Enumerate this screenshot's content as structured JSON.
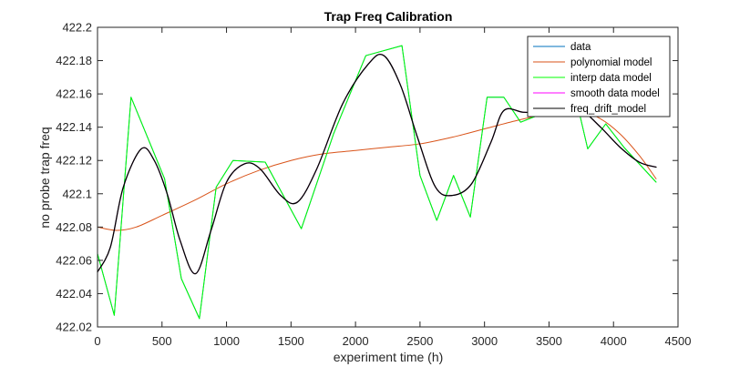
{
  "chart_data": {
    "type": "line",
    "title": "Trap Freq Calibration",
    "xlabel": "experiment time (h)",
    "ylabel": "no probe trap freq",
    "xlim": [
      0,
      4500
    ],
    "ylim": [
      422.02,
      422.2
    ],
    "x_ticks": [
      0,
      500,
      1000,
      1500,
      2000,
      2500,
      3000,
      3500,
      4000,
      4500
    ],
    "y_ticks": [
      422.02,
      422.04,
      422.06,
      422.08,
      422.1,
      422.12,
      422.14,
      422.16,
      422.18,
      422.2
    ],
    "x_tick_labels": [
      "0",
      "500",
      "1000",
      "1500",
      "2000",
      "2500",
      "3000",
      "3500",
      "4000",
      "4500"
    ],
    "y_tick_labels": [
      "422.02",
      "422.04",
      "422.06",
      "422.08",
      "422.1",
      "422.12",
      "422.14",
      "422.16",
      "422.18",
      "422.2"
    ],
    "grid": false,
    "legend_position": "top-right",
    "series": [
      {
        "name": "data",
        "color": "#0072BD",
        "x": [
          0,
          130,
          260,
          520,
          650,
          790,
          920,
          1050,
          1300,
          1580,
          1830,
          2080,
          2360,
          2500,
          2630,
          2760,
          2890,
          3020,
          3150,
          3280,
          3410,
          3540,
          3680,
          3800,
          3940,
          4080,
          4330
        ],
        "y": [
          422.064,
          422.027,
          422.158,
          422.109,
          422.049,
          422.025,
          422.104,
          422.12,
          422.119,
          422.079,
          422.136,
          422.183,
          422.189,
          422.111,
          422.084,
          422.111,
          422.086,
          422.158,
          422.158,
          422.143,
          422.147,
          422.147,
          422.167,
          422.127,
          422.142,
          422.128,
          422.107
        ]
      },
      {
        "name": "polynomial model",
        "color": "#D95319",
        "x": [
          0,
          150,
          300,
          500,
          750,
          1000,
          1250,
          1500,
          1750,
          2000,
          2250,
          2500,
          2750,
          3000,
          3250,
          3500,
          3750,
          3900,
          4050,
          4200,
          4330
        ],
        "y": [
          422.08,
          422.078,
          422.08,
          422.087,
          422.096,
          422.106,
          422.114,
          422.12,
          422.124,
          422.126,
          422.128,
          422.13,
          422.134,
          422.139,
          422.144,
          422.148,
          422.149,
          422.145,
          422.136,
          422.123,
          422.109
        ]
      },
      {
        "name": "interp data model",
        "color": "#00FF00",
        "x": [
          0,
          130,
          260,
          520,
          650,
          790,
          920,
          1050,
          1300,
          1580,
          1830,
          2080,
          2360,
          2500,
          2630,
          2760,
          2890,
          3020,
          3150,
          3280,
          3410,
          3540,
          3680,
          3800,
          3940,
          4080,
          4330
        ],
        "y": [
          422.064,
          422.027,
          422.158,
          422.109,
          422.049,
          422.025,
          422.104,
          422.12,
          422.119,
          422.079,
          422.136,
          422.183,
          422.189,
          422.111,
          422.084,
          422.111,
          422.086,
          422.158,
          422.158,
          422.143,
          422.147,
          422.147,
          422.167,
          422.127,
          422.142,
          422.128,
          422.107
        ]
      },
      {
        "name": "smooth data model",
        "color": "#FF00FF",
        "x": [
          0,
          100,
          200,
          340,
          440,
          540,
          640,
          760,
          880,
          1000,
          1140,
          1260,
          1420,
          1550,
          1700,
          1900,
          2100,
          2220,
          2350,
          2480,
          2620,
          2750,
          2900,
          3050,
          3150,
          3300,
          3450,
          3600,
          3750,
          3900,
          4050,
          4200,
          4330
        ],
        "y": [
          422.053,
          422.068,
          422.104,
          422.127,
          422.12,
          422.1,
          422.072,
          422.052,
          422.078,
          422.107,
          422.118,
          422.115,
          422.099,
          422.095,
          422.115,
          422.154,
          422.178,
          422.183,
          422.165,
          422.134,
          422.104,
          422.099,
          422.106,
          422.131,
          422.15,
          422.149,
          422.149,
          422.151,
          422.15,
          422.14,
          422.128,
          422.119,
          422.116
        ]
      },
      {
        "name": "freq_drift_model",
        "color": "#000000",
        "x": [
          0,
          100,
          200,
          340,
          440,
          540,
          640,
          760,
          880,
          1000,
          1140,
          1260,
          1420,
          1550,
          1700,
          1900,
          2100,
          2220,
          2350,
          2480,
          2620,
          2750,
          2900,
          3050,
          3150,
          3300,
          3450,
          3600,
          3750,
          3900,
          4050,
          4200,
          4330
        ],
        "y": [
          422.053,
          422.068,
          422.104,
          422.127,
          422.12,
          422.1,
          422.072,
          422.052,
          422.078,
          422.107,
          422.118,
          422.115,
          422.099,
          422.095,
          422.115,
          422.154,
          422.178,
          422.183,
          422.165,
          422.134,
          422.104,
          422.099,
          422.106,
          422.131,
          422.15,
          422.149,
          422.149,
          422.151,
          422.15,
          422.14,
          422.128,
          422.119,
          422.116
        ]
      }
    ]
  }
}
